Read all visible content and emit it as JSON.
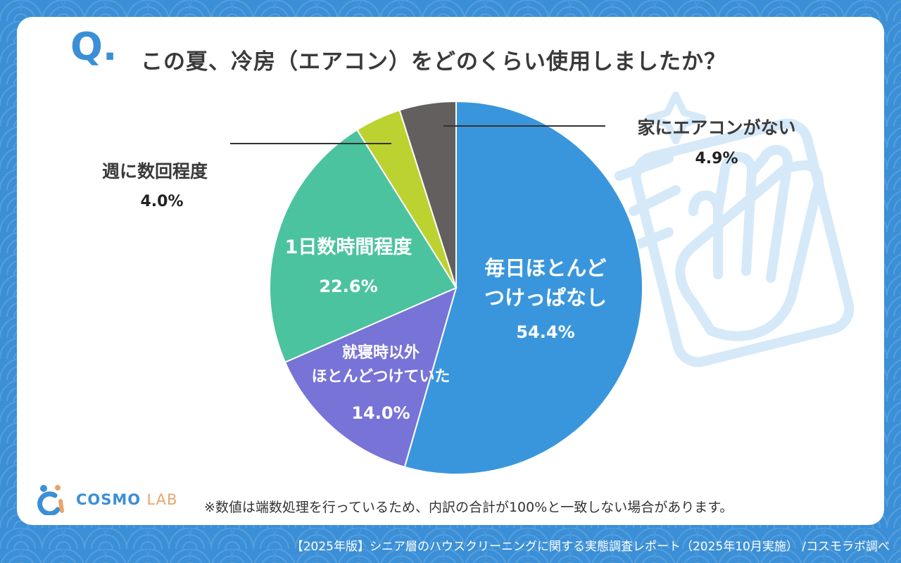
{
  "question": {
    "mark": "Q.",
    "text": "この夏、冷房（エアコン）をどのくらい使用しましたか？"
  },
  "colors": {
    "background": "#3b8fd6",
    "card": "#ffffff",
    "accent": "#3b8fd6"
  },
  "chart_data": {
    "type": "pie",
    "start_angle_deg": 0,
    "direction": "clockwise",
    "slices": [
      {
        "label": "毎日ほとんど\nつけっぱなし",
        "value": 54.4,
        "value_text": "54.4%",
        "color": "#3a96dc",
        "label_inside": true
      },
      {
        "label": "就寝時以外\nほとんどつけていた",
        "value": 14.0,
        "value_text": "14.0%",
        "color": "#7873d6",
        "label_inside": true
      },
      {
        "label": "1日数時間程度",
        "value": 22.6,
        "value_text": "22.6%",
        "color": "#4bc39e",
        "label_inside": true
      },
      {
        "label": "週に数回程度",
        "value": 4.0,
        "value_text": "4.0%",
        "color": "#bcd230",
        "label_inside": false
      },
      {
        "label": "家にエアコンがない",
        "value": 4.9,
        "value_text": "4.9%",
        "color": "#645f5f",
        "label_inside": false
      }
    ]
  },
  "logo": {
    "main": "COSMO",
    "sub": "LAB"
  },
  "note": "※数値は端数処理を行っているため、内訳の合計が100%と一致しない場合があります。",
  "footer": "【2025年版】シニア層のハウスクリーニングに関する実態調査レポート（2025年10月実施） /コスモラボ調べ",
  "decoration": {
    "icon": "cleaning-hand-cloth-icon"
  }
}
